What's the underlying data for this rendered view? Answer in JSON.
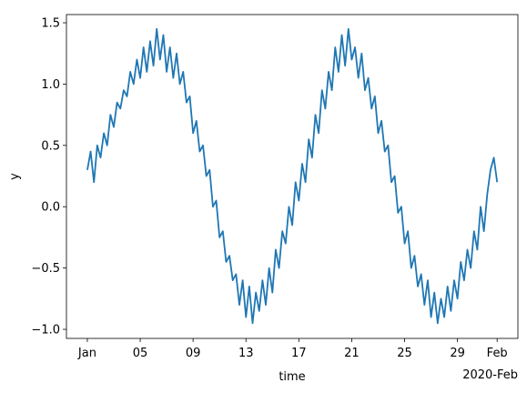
{
  "chart_data": {
    "type": "line",
    "xlabel": "time",
    "ylabel": "y",
    "x_offset_label": "2020-Feb",
    "x": [
      0,
      0.25,
      0.5,
      0.75,
      1,
      1.25,
      1.5,
      1.75,
      2,
      2.25,
      2.5,
      2.75,
      3,
      3.25,
      3.5,
      3.75,
      4,
      4.25,
      4.5,
      4.75,
      5,
      5.25,
      5.5,
      5.75,
      6,
      6.25,
      6.5,
      6.75,
      7,
      7.25,
      7.5,
      7.75,
      8,
      8.25,
      8.5,
      8.75,
      9,
      9.25,
      9.5,
      9.75,
      10,
      10.25,
      10.5,
      10.75,
      11,
      11.25,
      11.5,
      11.75,
      12,
      12.25,
      12.5,
      12.75,
      13,
      13.25,
      13.5,
      13.75,
      14,
      14.25,
      14.5,
      14.75,
      15,
      15.25,
      15.5,
      15.75,
      16,
      16.25,
      16.5,
      16.75,
      17,
      17.25,
      17.5,
      17.75,
      18,
      18.25,
      18.5,
      18.75,
      19,
      19.25,
      19.5,
      19.75,
      20,
      20.25,
      20.5,
      20.75,
      21,
      21.25,
      21.5,
      21.75,
      22,
      22.25,
      22.5,
      22.75,
      23,
      23.25,
      23.5,
      23.75,
      24,
      24.25,
      24.5,
      24.75,
      25,
      25.25,
      25.5,
      25.75,
      26,
      26.25,
      26.5,
      26.75,
      27,
      27.25,
      27.5,
      27.75,
      28,
      28.25,
      28.5,
      28.75,
      29,
      29.25,
      29.5,
      29.75,
      30,
      30.25,
      30.5,
      30.75,
      31
    ],
    "series": [
      {
        "color": "#1f77b4",
        "values": [
          0.3,
          0.45,
          0.2,
          0.5,
          0.4,
          0.6,
          0.5,
          0.75,
          0.65,
          0.85,
          0.8,
          0.95,
          0.9,
          1.1,
          1.0,
          1.2,
          1.05,
          1.3,
          1.1,
          1.35,
          1.15,
          1.45,
          1.2,
          1.4,
          1.1,
          1.3,
          1.05,
          1.25,
          1.0,
          1.1,
          0.85,
          0.9,
          0.6,
          0.7,
          0.45,
          0.5,
          0.25,
          0.3,
          0.0,
          0.05,
          -0.25,
          -0.2,
          -0.45,
          -0.4,
          -0.6,
          -0.55,
          -0.8,
          -0.6,
          -0.9,
          -0.65,
          -0.95,
          -0.7,
          -0.85,
          -0.6,
          -0.8,
          -0.5,
          -0.7,
          -0.35,
          -0.5,
          -0.2,
          -0.3,
          0.0,
          -0.15,
          0.2,
          0.05,
          0.35,
          0.2,
          0.55,
          0.4,
          0.75,
          0.6,
          0.95,
          0.8,
          1.1,
          0.95,
          1.3,
          1.1,
          1.4,
          1.15,
          1.45,
          1.2,
          1.3,
          1.05,
          1.25,
          0.95,
          1.05,
          0.8,
          0.9,
          0.6,
          0.7,
          0.45,
          0.5,
          0.2,
          0.25,
          -0.05,
          0.0,
          -0.3,
          -0.2,
          -0.5,
          -0.4,
          -0.65,
          -0.55,
          -0.8,
          -0.6,
          -0.9,
          -0.7,
          -0.95,
          -0.75,
          -0.9,
          -0.65,
          -0.85,
          -0.6,
          -0.75,
          -0.45,
          -0.6,
          -0.35,
          -0.5,
          -0.2,
          -0.35,
          0.0,
          -0.2,
          0.1,
          0.3,
          0.4,
          0.2
        ]
      }
    ],
    "xlim": [
      -1.58,
      32.57
    ],
    "xticks": [
      {
        "value": 0,
        "label": "Jan"
      },
      {
        "value": 4,
        "label": "05"
      },
      {
        "value": 8,
        "label": "09"
      },
      {
        "value": 12,
        "label": "13"
      },
      {
        "value": 16,
        "label": "17"
      },
      {
        "value": 20,
        "label": "21"
      },
      {
        "value": 24,
        "label": "25"
      },
      {
        "value": 28,
        "label": "29"
      },
      {
        "value": 31,
        "label": "Feb"
      }
    ],
    "ylim": [
      -1.074,
      1.567
    ],
    "yticks": [
      {
        "value": -1,
        "label": "−1.0"
      },
      {
        "value": -0.5,
        "label": "−0.5"
      },
      {
        "value": 0,
        "label": "0.0"
      },
      0.5,
      {
        "value": 1,
        "label": "1.0"
      },
      1.5
    ]
  }
}
